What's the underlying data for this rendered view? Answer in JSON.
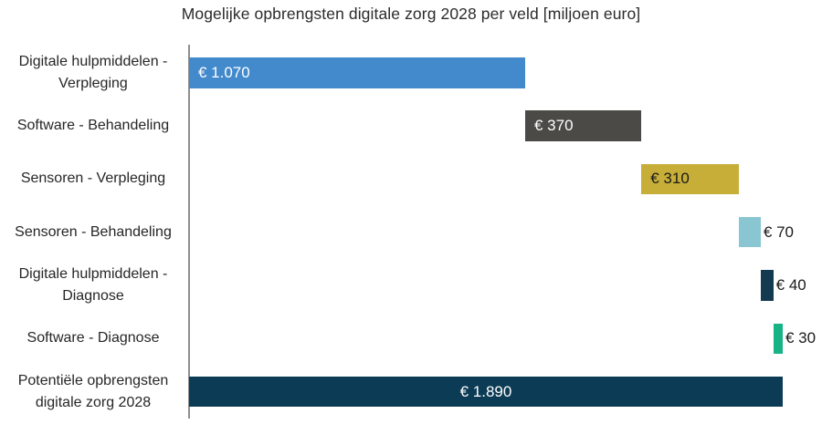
{
  "title": "Mogelijke opbrengsten digitale zorg 2028 per veld [miljoen euro]",
  "chart_data": {
    "type": "bar",
    "subtype": "horizontal-waterfall",
    "title": "Mogelijke opbrengsten digitale zorg 2028 per veld [miljoen euro]",
    "unit": "miljoen euro",
    "xlim": [
      0,
      1890
    ],
    "grid": false,
    "legend": "none",
    "axis_color": "#8f8f8f",
    "background_color": "#ffffff",
    "categories": [
      "Digitale hulpmiddelen -\nVerpleging",
      "Software - Behandeling",
      "Sensoren - Verpleging",
      "Sensoren - Behandeling",
      "Digitale hulpmiddelen -\nDiagnose",
      "Software - Diagnose",
      "Potentiële opbrengsten\ndigitale zorg 2028"
    ],
    "bars": [
      {
        "category": "Digitale hulpmiddelen -\nVerpleging",
        "start": 0,
        "value": 1070,
        "display": "€ 1.070",
        "color": "#438acd",
        "label_placement": "inside-left",
        "label_color": "#ffffff"
      },
      {
        "category": "Software - Behandeling",
        "start": 1070,
        "value": 370,
        "display": "€ 370",
        "color": "#4c4a46",
        "label_placement": "inside-left",
        "label_color": "#ffffff"
      },
      {
        "category": "Sensoren - Verpleging",
        "start": 1440,
        "value": 310,
        "display": "€ 310",
        "color": "#c7ae39",
        "label_placement": "inside-left",
        "label_color": "#1a1a1a"
      },
      {
        "category": "Sensoren - Behandeling",
        "start": 1750,
        "value": 70,
        "display": "€ 70",
        "color": "#89c6d2",
        "label_placement": "outside-right",
        "label_color": "#1a1a1a"
      },
      {
        "category": "Digitale hulpmiddelen -\nDiagnose",
        "start": 1820,
        "value": 40,
        "display": "€ 40",
        "color": "#143a50",
        "label_placement": "outside-right",
        "label_color": "#1a1a1a"
      },
      {
        "category": "Software - Diagnose",
        "start": 1860,
        "value": 30,
        "display": "€ 30",
        "color": "#18b287",
        "label_placement": "outside-right",
        "label_color": "#1a1a1a"
      },
      {
        "category": "Potentiële opbrengsten\ndigitale zorg 2028",
        "start": 0,
        "value": 1890,
        "display": "€ 1.890",
        "color": "#0c3c55",
        "label_placement": "center",
        "label_color": "#ffffff"
      }
    ]
  }
}
